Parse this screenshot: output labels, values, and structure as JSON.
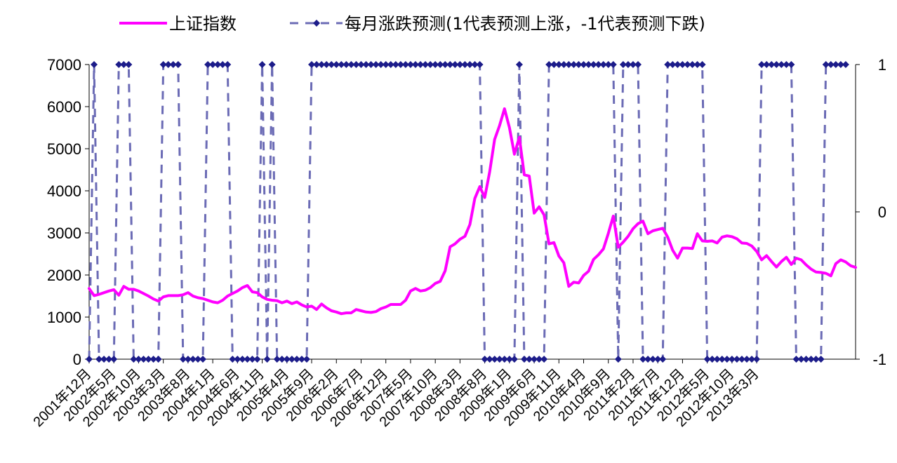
{
  "chart_data": {
    "type": "line",
    "legend": {
      "position": "top",
      "items": [
        {
          "label": "上证指数",
          "color": "#ff00ff",
          "style": "solid"
        },
        {
          "label": "每月涨跌预测(1代表预测上涨，-1代表预测下跌)",
          "color": "#6b6bb5",
          "style": "dashed-diamond"
        }
      ]
    },
    "y_left": {
      "min": 0,
      "max": 7000,
      "ticks": [
        "0",
        "1000",
        "2000",
        "3000",
        "4000",
        "5000",
        "6000",
        "7000"
      ]
    },
    "y_right": {
      "min": -1,
      "max": 1,
      "ticks": [
        "-1",
        "0",
        "1"
      ]
    },
    "x_tick_labels": [
      "2001年12月",
      "2002年5月",
      "2002年10月",
      "2003年3月",
      "2003年8月",
      "2004年1月",
      "2004年6月",
      "2004年11月",
      "2005年4月",
      "2005年9月",
      "2006年2月",
      "2006年7月",
      "2006年12月",
      "2007年5月",
      "2007年10月",
      "2008年3月",
      "2008年8月",
      "2009年1月",
      "2009年6月",
      "2009年11月",
      "2010年4月",
      "2010年9月",
      "2011年2月",
      "2011年7月",
      "2011年12月",
      "2012年5月",
      "2012年10月",
      "2013年3月"
    ],
    "x_tick_interval_months": 5,
    "grid": false,
    "series": [
      {
        "name": "上证指数",
        "color": "#ff00ff",
        "values": [
          1680,
          1510,
          1540,
          1580,
          1620,
          1650,
          1520,
          1730,
          1660,
          1660,
          1620,
          1560,
          1500,
          1430,
          1380,
          1480,
          1510,
          1510,
          1510,
          1530,
          1580,
          1500,
          1460,
          1440,
          1400,
          1360,
          1340,
          1400,
          1500,
          1560,
          1620,
          1700,
          1750,
          1600,
          1580,
          1480,
          1420,
          1400,
          1390,
          1340,
          1380,
          1320,
          1360,
          1290,
          1240,
          1260,
          1180,
          1310,
          1220,
          1150,
          1120,
          1080,
          1100,
          1100,
          1180,
          1150,
          1120,
          1110,
          1130,
          1200,
          1240,
          1300,
          1300,
          1300,
          1400,
          1620,
          1680,
          1620,
          1640,
          1700,
          1800,
          1850,
          2100,
          2670,
          2740,
          2850,
          2920,
          3200,
          3820,
          4100,
          3840,
          4450,
          5220,
          5550,
          5950,
          5500,
          4870,
          5270,
          4380,
          4350,
          3470,
          3620,
          3430,
          2740,
          2770,
          2450,
          2290,
          1730,
          1830,
          1810,
          1990,
          2090,
          2370,
          2480,
          2620,
          2990,
          3400,
          2660,
          2780,
          2920,
          3100,
          3220,
          3280,
          2980,
          3050,
          3080,
          3110,
          2900,
          2590,
          2400,
          2640,
          2640,
          2630,
          2980,
          2810,
          2800,
          2810,
          2760,
          2900,
          2930,
          2910,
          2860,
          2760,
          2750,
          2690,
          2560,
          2360,
          2460,
          2320,
          2190,
          2320,
          2420,
          2250,
          2400,
          2360,
          2240,
          2140,
          2070,
          2060,
          2040,
          1980,
          2270,
          2360,
          2310,
          2220,
          2180
        ]
      },
      {
        "name": "每月涨跌预测(1代表预测上涨，-1代表预测下跌)",
        "color": "#6b6bb5",
        "values": [
          -1,
          1,
          -1,
          -1,
          -1,
          -1,
          1,
          1,
          1,
          -1,
          -1,
          -1,
          -1,
          -1,
          -1,
          1,
          1,
          1,
          1,
          -1,
          -1,
          -1,
          -1,
          -1,
          1,
          1,
          1,
          1,
          1,
          -1,
          -1,
          -1,
          -1,
          -1,
          -1,
          1,
          -1,
          1,
          -1,
          -1,
          -1,
          -1,
          -1,
          -1,
          -1,
          1,
          1,
          1,
          1,
          1,
          1,
          1,
          1,
          1,
          1,
          1,
          1,
          1,
          1,
          1,
          1,
          1,
          1,
          1,
          1,
          1,
          1,
          1,
          1,
          1,
          1,
          1,
          1,
          1,
          1,
          1,
          1,
          1,
          1,
          1,
          -1,
          -1,
          -1,
          -1,
          -1,
          -1,
          -1,
          1,
          -1,
          -1,
          -1,
          -1,
          -1,
          1,
          1,
          1,
          1,
          1,
          1,
          1,
          1,
          1,
          1,
          1,
          1,
          1,
          1,
          -1,
          1,
          1,
          1,
          1,
          -1,
          -1,
          -1,
          -1,
          -1,
          1,
          1,
          1,
          1,
          1,
          1,
          1,
          1,
          -1,
          -1,
          -1,
          -1,
          -1,
          -1,
          -1,
          -1,
          -1,
          -1,
          -1,
          1,
          1,
          1,
          1,
          1,
          1,
          1,
          -1,
          -1,
          -1,
          -1,
          -1,
          -1,
          1,
          1,
          1,
          1,
          1
        ]
      }
    ]
  }
}
